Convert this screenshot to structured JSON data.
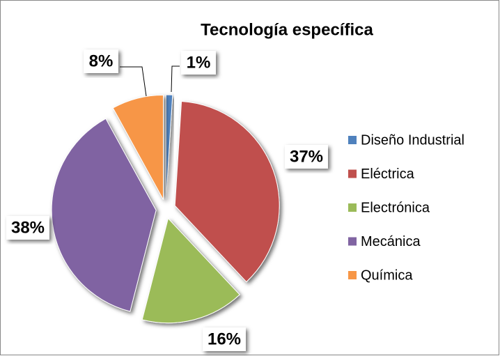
{
  "chart_data": {
    "type": "pie",
    "title": "Tecnología específica",
    "categories": [
      "Diseño Industrial",
      "Eléctrica",
      "Electrónica",
      "Mecánica",
      "Química"
    ],
    "values": [
      1,
      37,
      16,
      38,
      8
    ],
    "value_labels": [
      "1%",
      "37%",
      "16%",
      "38%",
      "8%"
    ],
    "colors": [
      "#4f81bd",
      "#c0504d",
      "#9bbb59",
      "#8064a2",
      "#f79646"
    ],
    "legend": "right"
  }
}
